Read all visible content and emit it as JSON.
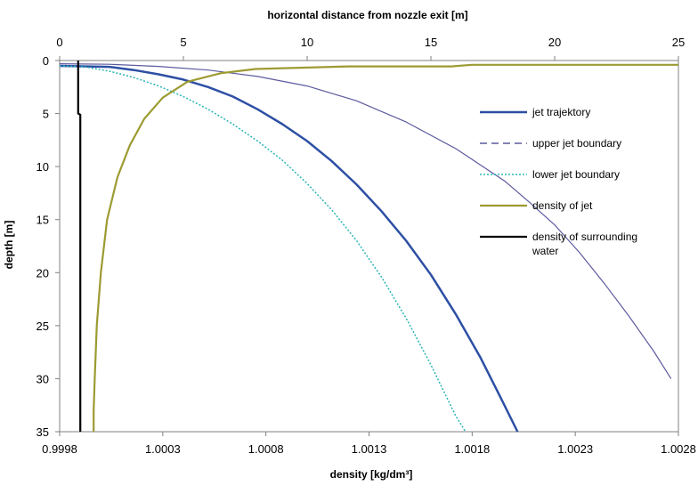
{
  "chart_data": {
    "type": "line",
    "top_axis": {
      "label": "horizontal distance from nozzle exit [m]",
      "range": [
        0,
        25
      ],
      "ticks": [
        0,
        5,
        10,
        15,
        20,
        25
      ],
      "tick_labels": [
        "0",
        "5",
        "10",
        "15",
        "20",
        "25"
      ]
    },
    "bottom_axis": {
      "label": "density [kg/dm³]",
      "range": [
        0.9998,
        1.0028
      ],
      "ticks": [
        0.9998,
        1.0003,
        1.0008,
        1.0013,
        1.0018,
        1.0023,
        1.0028
      ],
      "tick_labels": [
        "0.9998",
        "1.0003",
        "1.0008",
        "1.0013",
        "1.0018",
        "1.0023",
        "1.0028"
      ]
    },
    "y_axis": {
      "label": "depth [m]",
      "range": [
        0,
        35
      ],
      "reversed": true,
      "ticks": [
        0,
        5,
        10,
        15,
        20,
        25,
        30,
        35
      ],
      "tick_labels": [
        "0",
        "5",
        "10",
        "15",
        "20",
        "25",
        "30",
        "35"
      ]
    },
    "grid": false,
    "legend_position": "right",
    "series": [
      {
        "name": "jet trajektory",
        "x_axis": "top",
        "color": "#2d4fa4",
        "style": "solid",
        "width": 2.5,
        "points": [
          [
            0,
            0.5
          ],
          [
            2,
            0.6
          ],
          [
            3,
            0.9
          ],
          [
            4,
            1.3
          ],
          [
            5,
            1.8
          ],
          [
            6,
            2.5
          ],
          [
            7,
            3.4
          ],
          [
            8,
            4.6
          ],
          [
            9,
            6.0
          ],
          [
            10,
            7.6
          ],
          [
            11,
            9.5
          ],
          [
            12,
            11.7
          ],
          [
            13,
            14.2
          ],
          [
            14,
            17.0
          ],
          [
            15,
            20.2
          ],
          [
            16,
            23.9
          ],
          [
            17,
            28.0
          ],
          [
            17.8,
            31.7
          ],
          [
            18.5,
            35.0
          ]
        ]
      },
      {
        "name": "upper jet boundary",
        "x_axis": "top",
        "color": "#5c5a9e",
        "style": "solid",
        "width": 1.2,
        "points": [
          [
            0,
            0.3
          ],
          [
            2,
            0.35
          ],
          [
            4,
            0.55
          ],
          [
            6,
            0.9
          ],
          [
            8,
            1.5
          ],
          [
            10,
            2.4
          ],
          [
            12,
            3.8
          ],
          [
            14,
            5.8
          ],
          [
            16,
            8.3
          ],
          [
            18,
            11.4
          ],
          [
            19,
            13.4
          ],
          [
            20,
            15.5
          ],
          [
            21,
            18.1
          ],
          [
            22,
            21.0
          ],
          [
            23,
            24.1
          ],
          [
            24,
            27.4
          ],
          [
            24.7,
            30.0
          ]
        ]
      },
      {
        "name": "lower jet boundary",
        "x_axis": "top",
        "color": "#2bb5b5",
        "style": "dotted",
        "width": 1.5,
        "points": [
          [
            0,
            0.5
          ],
          [
            1,
            0.6
          ],
          [
            2,
            1.0
          ],
          [
            3,
            1.6
          ],
          [
            4,
            2.4
          ],
          [
            5,
            3.4
          ],
          [
            6,
            4.6
          ],
          [
            7,
            6.0
          ],
          [
            8,
            7.6
          ],
          [
            9,
            9.4
          ],
          [
            10,
            11.6
          ],
          [
            11,
            14.1
          ],
          [
            12,
            17.0
          ],
          [
            13,
            20.4
          ],
          [
            14,
            24.3
          ],
          [
            15,
            28.7
          ],
          [
            16,
            33.5
          ],
          [
            16.4,
            35.0
          ]
        ]
      },
      {
        "name": "density of jet",
        "x_axis": "bottom",
        "color": "#9c9b32",
        "style": "solid",
        "width": 2.2,
        "points": [
          [
            0.999965,
            35.0
          ],
          [
            0.999965,
            33.0
          ],
          [
            0.99997,
            30.0
          ],
          [
            0.99998,
            25.0
          ],
          [
            1.0,
            20.0
          ],
          [
            1.00003,
            15.0
          ],
          [
            1.00008,
            11.0
          ],
          [
            1.00014,
            8.0
          ],
          [
            1.00021,
            5.5
          ],
          [
            1.0003,
            3.5
          ],
          [
            1.00042,
            2.0
          ],
          [
            1.00058,
            1.2
          ],
          [
            1.00075,
            0.8
          ],
          [
            1.0012,
            0.55
          ],
          [
            1.0017,
            0.55
          ],
          [
            1.0018,
            0.4
          ],
          [
            1.0028,
            0.4
          ]
        ]
      },
      {
        "name": "density of surrounding\nwater",
        "x_axis": "bottom",
        "color": "#000000",
        "style": "solid",
        "width": 2.2,
        "points": [
          [
            0.99989,
            0.0
          ],
          [
            0.99989,
            5.0
          ],
          [
            0.9999,
            5.1
          ],
          [
            0.9999,
            35.0
          ]
        ]
      }
    ]
  }
}
